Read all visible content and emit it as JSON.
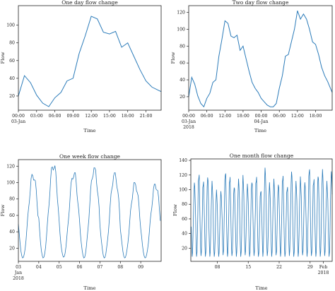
{
  "chart_data": [
    {
      "type": "line",
      "title": "One day flow change",
      "xlabel": "Time",
      "ylabel": "Flow",
      "color": "#2b7bb9",
      "xlim": [
        0,
        23.5
      ],
      "ylim": [
        4,
        122
      ],
      "yticks": [
        20,
        40,
        60,
        80,
        100
      ],
      "xticks": [
        {
          "v": 0,
          "label": "00:00",
          "sub": "03-Jan"
        },
        {
          "v": 3,
          "label": "03:00"
        },
        {
          "v": 6,
          "label": "06:00"
        },
        {
          "v": 9,
          "label": "09:00"
        },
        {
          "v": 12,
          "label": "12:00"
        },
        {
          "v": 15,
          "label": "15:00"
        },
        {
          "v": 18,
          "label": "18:00"
        },
        {
          "v": 21,
          "label": "21:00"
        }
      ],
      "x": [
        0,
        1,
        2,
        3,
        4,
        5,
        6,
        7,
        8,
        9,
        10,
        11,
        12,
        13,
        14,
        15,
        16,
        17,
        18,
        19,
        20,
        21,
        22,
        23.5
      ],
      "y": [
        20,
        43,
        35,
        21,
        12,
        8,
        18,
        24,
        37,
        40,
        68,
        88,
        110,
        107,
        92,
        90,
        93,
        75,
        80,
        65,
        50,
        37,
        30,
        25
      ]
    },
    {
      "type": "line",
      "title": "Two day flow change",
      "xlabel": "Time",
      "ylabel": "Flow",
      "color": "#2b7bb9",
      "xlim": [
        0,
        47.5
      ],
      "ylim": [
        4,
        128
      ],
      "yticks": [
        20,
        40,
        60,
        80,
        100,
        120
      ],
      "xticks": [
        {
          "v": 0,
          "label": "00:00",
          "sub": "03-Jan",
          "sub2": "2018"
        },
        {
          "v": 6,
          "label": "06:00"
        },
        {
          "v": 12,
          "label": "12:00"
        },
        {
          "v": 18,
          "label": "18:00"
        },
        {
          "v": 24,
          "label": "00:00",
          "sub": "04-Jan"
        },
        {
          "v": 30,
          "label": "06:00"
        },
        {
          "v": 36,
          "label": "12:00"
        },
        {
          "v": 42,
          "label": "18:00"
        }
      ],
      "x": [
        0,
        1,
        2,
        3,
        4,
        5,
        6,
        7,
        8,
        9,
        10,
        11,
        12,
        13,
        14,
        15,
        16,
        17,
        18,
        19,
        20,
        21,
        22,
        23,
        24,
        25,
        26,
        27,
        28,
        29,
        30,
        31,
        32,
        33,
        34,
        35,
        36,
        37,
        38,
        39,
        40,
        41,
        42,
        43,
        44,
        45,
        46,
        47.5
      ],
      "y": [
        20,
        43,
        35,
        21,
        12,
        8,
        18,
        24,
        37,
        40,
        68,
        88,
        110,
        107,
        92,
        90,
        93,
        75,
        80,
        65,
        50,
        37,
        30,
        25,
        18,
        14,
        10,
        8,
        8,
        12,
        30,
        45,
        68,
        70,
        85,
        100,
        122,
        112,
        118,
        112,
        100,
        85,
        82,
        70,
        55,
        45,
        38,
        25
      ]
    },
    {
      "type": "line",
      "title": "One week flow change",
      "xlabel": "Time",
      "ylabel": "Flow",
      "color": "#2b7bb9",
      "xlim": [
        3,
        10
      ],
      "ylim": [
        4,
        128
      ],
      "yticks": [
        20,
        40,
        60,
        80,
        100,
        120
      ],
      "xticks": [
        {
          "v": 3,
          "label": "03",
          "sub": "Jan",
          "sub2": "2018"
        },
        {
          "v": 4,
          "label": "04"
        },
        {
          "v": 5,
          "label": "05"
        },
        {
          "v": 6,
          "label": "06"
        },
        {
          "v": 7,
          "label": "07"
        },
        {
          "v": 8,
          "label": "08"
        },
        {
          "v": 9,
          "label": "09"
        }
      ],
      "peaks": [
        110,
        122,
        112,
        118,
        112,
        100,
        98
      ],
      "troughs": [
        8,
        8,
        9,
        8,
        8,
        8,
        8
      ]
    },
    {
      "type": "line",
      "title": "One month flow change",
      "xlabel": "Time",
      "ylabel": "Flow",
      "color": "#2b7bb9",
      "xlim": [
        2,
        34
      ],
      "ylim": [
        2,
        142
      ],
      "yticks": [
        20,
        40,
        60,
        80,
        100,
        120,
        140
      ],
      "xticks": [
        {
          "v": 8,
          "label": "08"
        },
        {
          "v": 15,
          "label": "15"
        },
        {
          "v": 22,
          "label": "22"
        },
        {
          "v": 29,
          "label": "29"
        },
        {
          "v": 32,
          "label": "Feb",
          "sub": "2018"
        }
      ],
      "peaks": [
        110,
        122,
        112,
        118,
        112,
        100,
        98,
        125,
        118,
        105,
        115,
        120,
        108,
        112,
        118,
        100,
        130,
        110,
        115,
        108,
        120,
        105,
        125,
        112,
        118,
        110,
        130,
        115,
        120,
        128,
        112,
        125
      ],
      "troughs": [
        8,
        8,
        9,
        8,
        8,
        8,
        8,
        10,
        8,
        9,
        8,
        8,
        10,
        8,
        9,
        8,
        8,
        9,
        8,
        10,
        8,
        8,
        9,
        8,
        8,
        10,
        8,
        9,
        8,
        8,
        9,
        8
      ]
    }
  ]
}
